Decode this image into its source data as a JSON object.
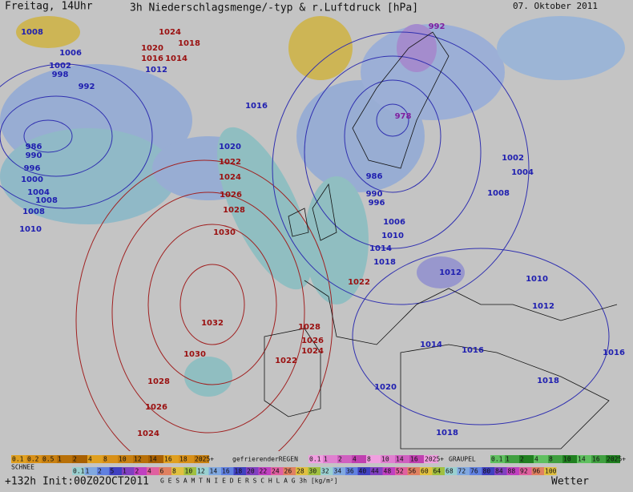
{
  "header": {
    "left": "Freitag, 14Uhr",
    "title": "3h Niederschlagsmenge/-typ & r.Luftdruck [hPa]",
    "date": "07. Oktober 2011"
  },
  "pressure_labels": [
    "1008",
    "1006",
    "1002",
    "998",
    "992",
    "986",
    "990",
    "996",
    "1000",
    "1004",
    "1008",
    "1008",
    "1010",
    "1024",
    "1018",
    "1020",
    "1016",
    "1014",
    "1012",
    "1016",
    "1020",
    "1022",
    "1024",
    "1026",
    "1028",
    "1030",
    "1032",
    "1030",
    "1028",
    "1026",
    "1024",
    "1022",
    "1024",
    "1026",
    "1028",
    "1022",
    "978",
    "992",
    "986",
    "990",
    "996",
    "1006",
    "1010",
    "1014",
    "1018",
    "1012",
    "1010",
    "1012",
    "1014",
    "1016",
    "1020",
    "1018",
    "1018",
    "1016",
    "1002",
    "1004",
    "1008"
  ],
  "legend": {
    "snow_label": "SCHNEE",
    "snow_scale": [
      "0.1",
      "0.2",
      "0.5",
      "1",
      "2",
      "4",
      "8",
      "10",
      "12",
      "14",
      "16",
      "18",
      "2025+"
    ],
    "freezing_rain_label": "gefrierenderREGEN",
    "freezing_rain_scale": [
      "0.1",
      "1",
      "2",
      "4",
      "8",
      "10",
      "14",
      "16",
      "2025+"
    ],
    "graupel_label": "GRAUPEL",
    "graupel_scale": [
      "0.1",
      "1",
      "2",
      "4",
      "8",
      "10",
      "14",
      "16",
      "2025+"
    ],
    "total_scale": [
      "0.1",
      "1",
      "2",
      "5",
      "1",
      "2",
      "4",
      "6",
      "8",
      "10",
      "12",
      "14",
      "16",
      "18",
      "20",
      "22",
      "24",
      "26",
      "28",
      "30",
      "32",
      "34",
      "36",
      "40",
      "44",
      "48",
      "52",
      "56",
      "60",
      "64",
      "68",
      "72",
      "76",
      "80",
      "84",
      "88",
      "92",
      "96",
      "100"
    ],
    "total_label": "G E S A M T N I E D E R S C H L A G  3h  [kg/m²]",
    "weather_label": "Wetter"
  },
  "footer": {
    "init": "+132h Init:00Z02OCT2011"
  }
}
